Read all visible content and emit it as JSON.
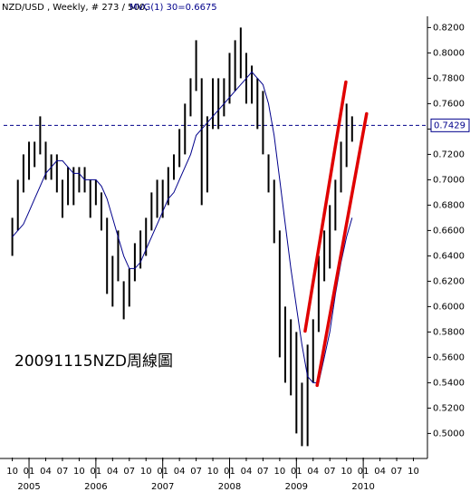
{
  "chart_data": {
    "type": "ohlc",
    "title": "NZD/USD , Weekly, # 273 / 500,",
    "annotation": "20091115NZD周線圖",
    "xlim": [
      2004.62,
      2010.96
    ],
    "ylim": [
      0.481,
      0.826
    ],
    "x": [
      2004.75,
      2004.833,
      2004.917,
      2005,
      2005.083,
      2005.167,
      2005.25,
      2005.333,
      2005.417,
      2005.5,
      2005.583,
      2005.667,
      2005.75,
      2005.833,
      2005.917,
      2006,
      2006.083,
      2006.167,
      2006.25,
      2006.333,
      2006.417,
      2006.5,
      2006.583,
      2006.667,
      2006.75,
      2006.833,
      2006.917,
      2007,
      2007.083,
      2007.167,
      2007.25,
      2007.333,
      2007.417,
      2007.5,
      2007.583,
      2007.667,
      2007.75,
      2007.833,
      2007.917,
      2008,
      2008.083,
      2008.167,
      2008.25,
      2008.333,
      2008.417,
      2008.5,
      2008.583,
      2008.667,
      2008.75,
      2008.833,
      2008.917,
      2009,
      2009.083,
      2009.167,
      2009.25,
      2009.333,
      2009.417,
      2009.5,
      2009.583,
      2009.667,
      2009.75,
      2009.833
    ],
    "series": [
      {
        "color": "#000000",
        "high": [
          0.67,
          0.7,
          0.72,
          0.73,
          0.73,
          0.75,
          0.73,
          0.72,
          0.72,
          0.7,
          0.71,
          0.71,
          0.71,
          0.71,
          0.7,
          0.7,
          0.69,
          0.67,
          0.64,
          0.66,
          0.62,
          0.63,
          0.65,
          0.66,
          0.67,
          0.69,
          0.7,
          0.7,
          0.71,
          0.72,
          0.74,
          0.76,
          0.78,
          0.81,
          0.78,
          0.75,
          0.78,
          0.78,
          0.78,
          0.8,
          0.81,
          0.82,
          0.8,
          0.79,
          0.78,
          0.77,
          0.72,
          0.7,
          0.66,
          0.6,
          0.59,
          0.58,
          0.54,
          0.57,
          0.59,
          0.64,
          0.66,
          0.68,
          0.7,
          0.73,
          0.76,
          0.75
        ],
        "low": [
          0.64,
          0.66,
          0.69,
          0.7,
          0.71,
          0.72,
          0.7,
          0.7,
          0.69,
          0.67,
          0.68,
          0.68,
          0.69,
          0.69,
          0.67,
          0.68,
          0.66,
          0.61,
          0.6,
          0.62,
          0.59,
          0.6,
          0.62,
          0.63,
          0.64,
          0.66,
          0.67,
          0.67,
          0.68,
          0.7,
          0.71,
          0.72,
          0.75,
          0.77,
          0.68,
          0.69,
          0.74,
          0.74,
          0.75,
          0.76,
          0.77,
          0.78,
          0.76,
          0.76,
          0.74,
          0.72,
          0.69,
          0.65,
          0.56,
          0.54,
          0.53,
          0.5,
          0.49,
          0.49,
          0.54,
          0.58,
          0.62,
          0.63,
          0.66,
          0.69,
          0.71,
          0.73
        ]
      },
      {
        "name": "MVG(1) 30=0.6675",
        "color": "#00008b",
        "values": [
          0.655,
          0.66,
          0.665,
          0.675,
          0.685,
          0.695,
          0.705,
          0.71,
          0.715,
          0.715,
          0.71,
          0.705,
          0.705,
          0.7,
          0.7,
          0.7,
          0.695,
          0.685,
          0.67,
          0.655,
          0.64,
          0.63,
          0.63,
          0.635,
          0.645,
          0.655,
          0.665,
          0.675,
          0.685,
          0.69,
          0.7,
          0.71,
          0.72,
          0.735,
          0.74,
          0.745,
          0.75,
          0.755,
          0.76,
          0.765,
          0.77,
          0.775,
          0.78,
          0.785,
          0.78,
          0.775,
          0.76,
          0.735,
          0.7,
          0.665,
          0.63,
          0.6,
          0.57,
          0.545,
          0.54,
          0.54,
          0.56,
          0.58,
          0.61,
          0.635,
          0.655,
          0.67
        ]
      }
    ],
    "last_price": {
      "value": 0.7429,
      "label": "0.7429"
    },
    "trendlines": [
      {
        "color": "#e00000",
        "x": [
          2009.13,
          2009.74
        ],
        "y": [
          0.5807,
          0.7771
        ]
      },
      {
        "color": "#e00000",
        "x": [
          2009.31,
          2010.05
        ],
        "y": [
          0.5379,
          0.7521
        ]
      }
    ],
    "yticks": [
      {
        "value": 0.5,
        "label": "0.5000"
      },
      {
        "value": 0.52,
        "label": "0.5200"
      },
      {
        "value": 0.54,
        "label": "0.5400"
      },
      {
        "value": 0.56,
        "label": "0.5600"
      },
      {
        "value": 0.58,
        "label": "0.5800"
      },
      {
        "value": 0.6,
        "label": "0.6000"
      },
      {
        "value": 0.62,
        "label": "0.6200"
      },
      {
        "value": 0.64,
        "label": "0.6400"
      },
      {
        "value": 0.66,
        "label": "0.6600"
      },
      {
        "value": 0.68,
        "label": "0.6800"
      },
      {
        "value": 0.7,
        "label": "0.7000"
      },
      {
        "value": 0.72,
        "label": "0.7200"
      },
      {
        "value": 0.74,
        "label": "0.7400"
      },
      {
        "value": 0.76,
        "label": "0.7600"
      },
      {
        "value": 0.78,
        "label": "0.7800"
      },
      {
        "value": 0.8,
        "label": "0.8000"
      },
      {
        "value": 0.82,
        "label": "0.8200"
      }
    ],
    "xticks": [
      {
        "value": 2004.75,
        "label": "10"
      },
      {
        "value": 2005,
        "label": "01"
      },
      {
        "value": 2005.25,
        "label": "04"
      },
      {
        "value": 2005.5,
        "label": "07"
      },
      {
        "value": 2005.75,
        "label": "10"
      },
      {
        "value": 2006,
        "label": "01"
      },
      {
        "value": 2006.25,
        "label": "04"
      },
      {
        "value": 2006.5,
        "label": "07"
      },
      {
        "value": 2006.75,
        "label": "10"
      },
      {
        "value": 2007,
        "label": "01"
      },
      {
        "value": 2007.25,
        "label": "04"
      },
      {
        "value": 2007.5,
        "label": "07"
      },
      {
        "value": 2007.75,
        "label": "10"
      },
      {
        "value": 2008,
        "label": "01"
      },
      {
        "value": 2008.25,
        "label": "04"
      },
      {
        "value": 2008.5,
        "label": "07"
      },
      {
        "value": 2008.75,
        "label": "10"
      },
      {
        "value": 2009,
        "label": "01"
      },
      {
        "value": 2009.25,
        "label": "04"
      },
      {
        "value": 2009.5,
        "label": "07"
      },
      {
        "value": 2009.75,
        "label": "10"
      },
      {
        "value": 2010,
        "label": "01"
      },
      {
        "value": 2010.25,
        "label": "04"
      },
      {
        "value": 2010.5,
        "label": "07"
      },
      {
        "value": 2010.75,
        "label": "10"
      }
    ],
    "year_labels": [
      2005,
      2006,
      2007,
      2008,
      2009,
      2010
    ]
  }
}
